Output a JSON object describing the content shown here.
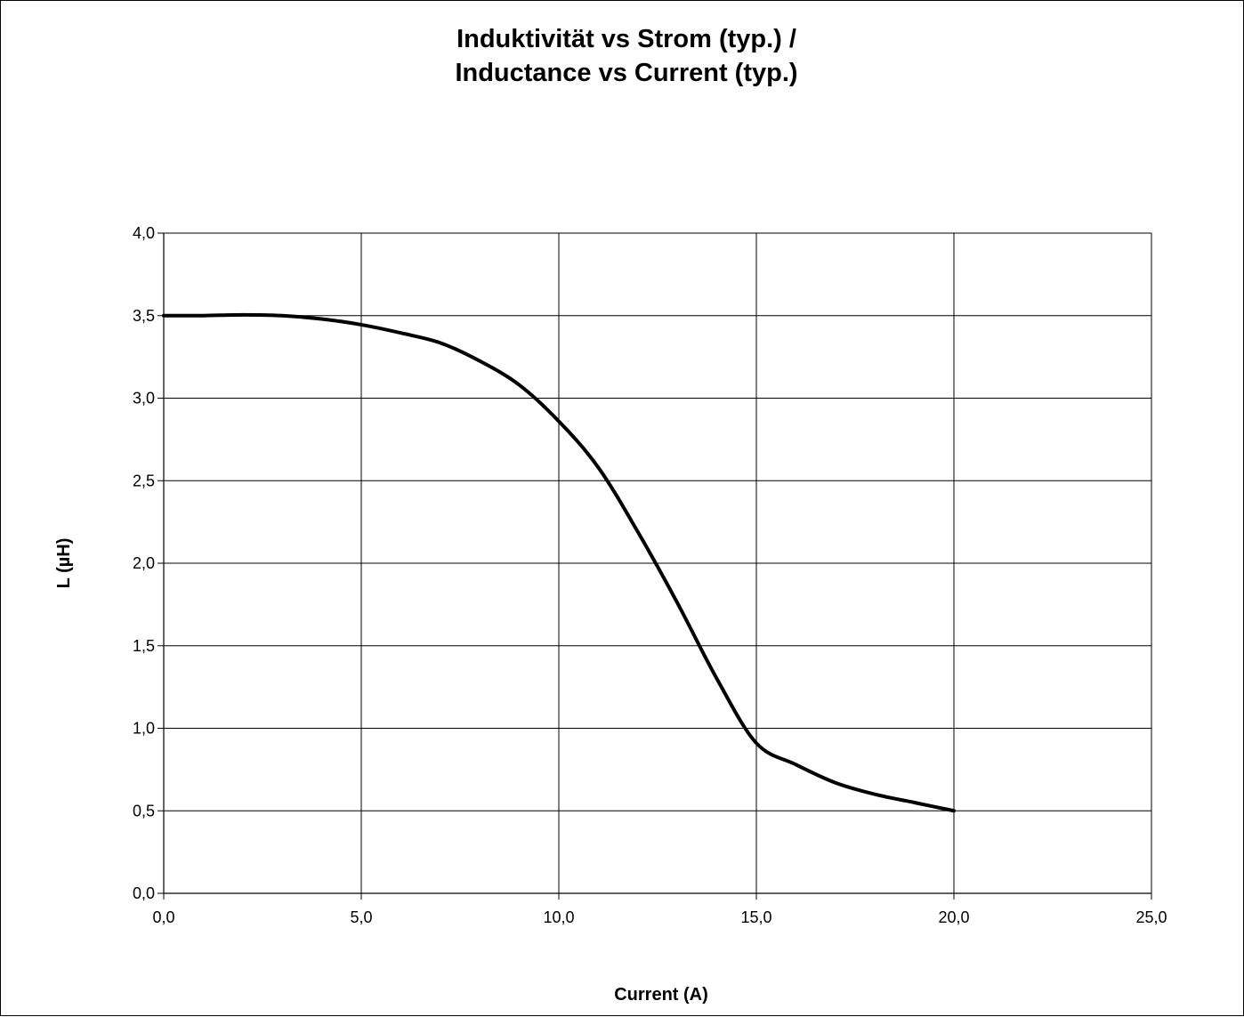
{
  "chart_data": {
    "type": "line",
    "title_lines": [
      "Induktivität vs Strom (typ.) /",
      "Inductance vs Current (typ.)"
    ],
    "xlabel": "Current (A)",
    "ylabel": "L (µH)",
    "xlim": [
      0,
      25
    ],
    "ylim": [
      0,
      4
    ],
    "x_ticks": [
      0,
      5,
      10,
      15,
      20,
      25
    ],
    "y_ticks": [
      0,
      0.5,
      1,
      1.5,
      2,
      2.5,
      3,
      3.5,
      4
    ],
    "x_tick_labels": [
      "0,0",
      "5,0",
      "10,0",
      "15,0",
      "20,0",
      "25,0"
    ],
    "y_tick_labels": [
      "0,0",
      "0,5",
      "1,0",
      "1,5",
      "2,0",
      "2,5",
      "3,0",
      "3,5",
      "4,0"
    ],
    "grid": true,
    "legend": "none",
    "line_color": "#000000",
    "series": [
      {
        "x": [
          0,
          1,
          2,
          3,
          4,
          5,
          6,
          7,
          8,
          9,
          10,
          11,
          12,
          13,
          14,
          15,
          16,
          17,
          18,
          19,
          20
        ],
        "y": [
          3.5,
          3.5,
          3.505,
          3.5,
          3.48,
          3.445,
          3.395,
          3.335,
          3.225,
          3.08,
          2.86,
          2.58,
          2.19,
          1.76,
          1.3,
          0.91,
          0.78,
          0.67,
          0.6,
          0.55,
          0.5
        ]
      }
    ]
  }
}
